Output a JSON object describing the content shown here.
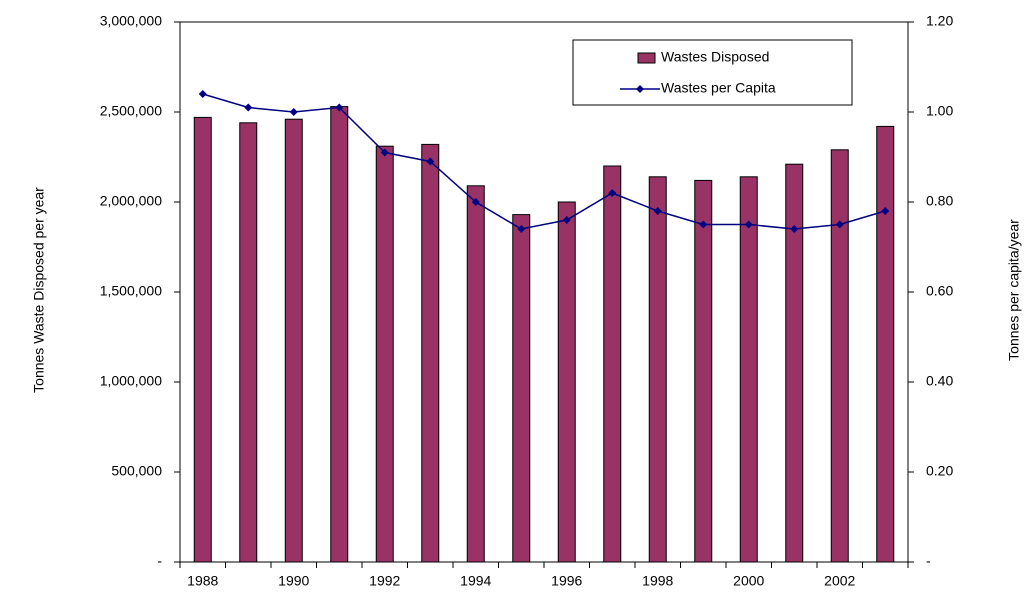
{
  "chart_data": {
    "type": "bar_line",
    "categories": [
      "1988",
      null,
      "1990",
      null,
      "1992",
      null,
      "1994",
      null,
      "1996",
      null,
      "1998",
      null,
      "2000",
      null,
      "2002",
      null
    ],
    "series": [
      {
        "name": "Wastes Disposed",
        "type": "bar",
        "color": "#993366",
        "axis": "y",
        "values": [
          2470000,
          2440000,
          2460000,
          2530000,
          2310000,
          2320000,
          2090000,
          1930000,
          2000000,
          2200000,
          2140000,
          2120000,
          2140000,
          2210000,
          2290000,
          2420000
        ]
      },
      {
        "name": "Wastes per Capita",
        "type": "line",
        "color": "#000080",
        "axis": "y2",
        "values": [
          1.04,
          1.01,
          1.0,
          1.01,
          0.91,
          0.89,
          0.8,
          0.74,
          0.76,
          0.82,
          0.78,
          0.75,
          0.75,
          0.74,
          0.75,
          0.78
        ]
      }
    ],
    "ylabel": "Tonnes Waste Disposed per year",
    "y2label": "Tonnes per capita/year",
    "ylim": [
      0,
      3000000
    ],
    "yticks": [
      {
        "value": 0,
        "label": "-"
      },
      {
        "value": 500000,
        "label": "500,000"
      },
      {
        "value": 1000000,
        "label": "1,000,000"
      },
      {
        "value": 1500000,
        "label": "1,500,000"
      },
      {
        "value": 2000000,
        "label": "2,000,000"
      },
      {
        "value": 2500000,
        "label": "2,500,000"
      },
      {
        "value": 3000000,
        "label": "3,000,000"
      }
    ],
    "y2lim": [
      0,
      1.2
    ],
    "y2ticks": [
      {
        "value": 0,
        "label": "-"
      },
      {
        "value": 0.2,
        "label": "0.20"
      },
      {
        "value": 0.4,
        "label": "0.40"
      },
      {
        "value": 0.6,
        "label": "0.60"
      },
      {
        "value": 0.8,
        "label": "0.80"
      },
      {
        "value": 1.0,
        "label": "1.00"
      },
      {
        "value": 1.2,
        "label": "1.20"
      }
    ],
    "grid": false,
    "legend": "upper right"
  }
}
